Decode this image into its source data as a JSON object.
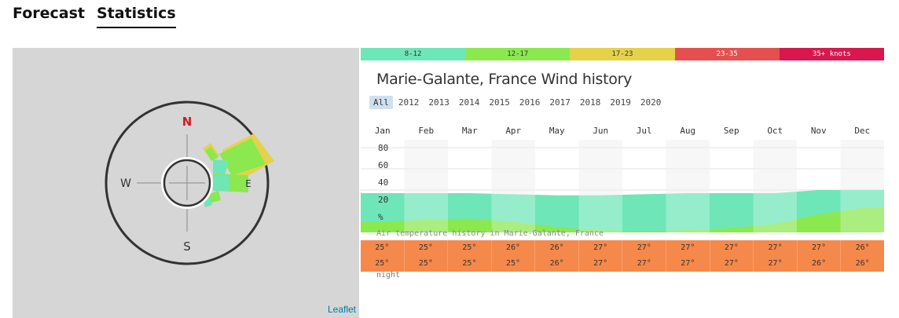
{
  "tabs": [
    {
      "label": "Forecast",
      "active": false
    },
    {
      "label": "Statistics",
      "active": true
    }
  ],
  "map": {
    "compass": {
      "north": "N",
      "south": "S",
      "west": "W",
      "east": "E"
    },
    "attribution": "Leaflet"
  },
  "legend": [
    {
      "label": "8-12",
      "color": "#6ee6b8"
    },
    {
      "label": "12-17",
      "color": "#8be84e"
    },
    {
      "label": "17-23",
      "color": "#e5d24a"
    },
    {
      "label": "23-35",
      "color": "#e5504f"
    },
    {
      "label": "35+ knots",
      "color": "#d8174d"
    }
  ],
  "title": "Marie-Galante, France Wind history",
  "years": [
    "All",
    "2012",
    "2013",
    "2014",
    "2015",
    "2016",
    "2017",
    "2018",
    "2019",
    "2020"
  ],
  "active_year": "All",
  "months": [
    "Jan",
    "Feb",
    "Mar",
    "Apr",
    "May",
    "Jun",
    "Jul",
    "Aug",
    "Sep",
    "Oct",
    "Nov",
    "Dec"
  ],
  "y_axis": {
    "labels": [
      "80",
      "60",
      "40",
      "20",
      "%"
    ],
    "max": 80
  },
  "chart_data": {
    "type": "area",
    "categories": [
      "Jan",
      "Feb",
      "Mar",
      "Apr",
      "May",
      "Jun",
      "Jul",
      "Aug",
      "Sep",
      "Oct",
      "Nov",
      "Dec"
    ],
    "ylim": [
      0,
      80
    ],
    "series": [
      {
        "values": [
          10,
          12,
          13,
          10,
          5,
          2,
          1,
          2,
          4,
          8,
          17,
          23
        ],
        "color": "#8be84e"
      },
      {
        "values": [
          37,
          37,
          37,
          36,
          35,
          35,
          36,
          37,
          37,
          37,
          40,
          40
        ],
        "color": "#6ee6b8"
      }
    ]
  },
  "air_temperature": {
    "label": "Air temperature history in Marie-Galante, France",
    "day": [
      "25°",
      "25°",
      "25°",
      "26°",
      "26°",
      "27°",
      "27°",
      "27°",
      "27°",
      "27°",
      "27°",
      "26°"
    ],
    "night": [
      "25°",
      "25°",
      "25°",
      "25°",
      "26°",
      "27°",
      "27°",
      "27°",
      "27°",
      "27°",
      "26°",
      "26°"
    ],
    "night_label": "night"
  }
}
